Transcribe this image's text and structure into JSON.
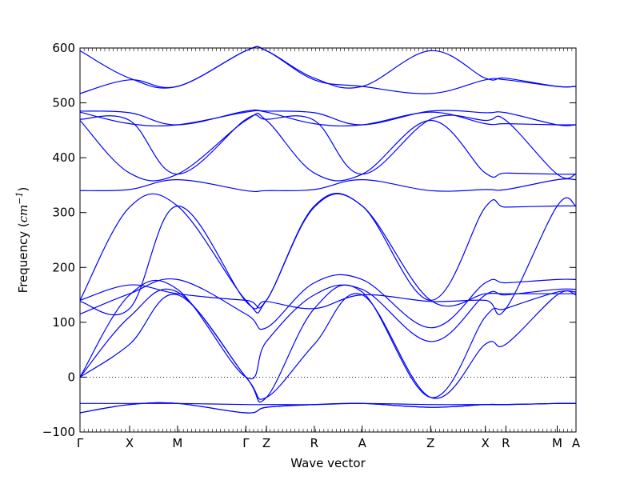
{
  "chart_data": {
    "type": "line",
    "xlabel": "Wave vector",
    "ylabel": {
      "prefix": "Frequency (",
      "unit": "cm",
      "exp": "−1",
      "suffix": ")"
    },
    "ylim": [
      -100,
      600
    ],
    "yticks": [
      -100,
      0,
      100,
      200,
      300,
      400,
      500,
      600
    ],
    "ytick_labels": [
      "−100",
      "0",
      "100",
      "200",
      "300",
      "400",
      "500",
      "600"
    ],
    "xlim": [
      0,
      2.9
    ],
    "kpoints": [
      {
        "label": "Γ",
        "x": 0.0
      },
      {
        "label": "X",
        "x": 0.29
      },
      {
        "label": "M",
        "x": 0.57
      },
      {
        "label": "Γ",
        "x": 0.97
      },
      {
        "label": "Z",
        "x": 1.09
      },
      {
        "label": "R",
        "x": 1.37
      },
      {
        "label": "A",
        "x": 1.65
      },
      {
        "label": "Z",
        "x": 2.05
      },
      {
        "label": "X",
        "x": 2.37
      },
      {
        "label": "R",
        "x": 2.49
      },
      {
        "label": "M",
        "x": 2.79
      },
      {
        "label": "A",
        "x": 2.9
      }
    ],
    "zero_line": {
      "y": 0,
      "style": "dotted"
    },
    "line_color": "#0000ff",
    "series": [
      {
        "x": [
          0,
          0.29,
          0.57,
          0.97,
          1.09,
          1.37,
          1.65,
          2.05,
          2.37,
          2.49,
          2.79,
          2.9
        ],
        "values": [
          -65,
          -50,
          -48,
          -65,
          -55,
          -50,
          -48,
          -55,
          -50,
          -50,
          -48,
          -48
        ]
      },
      {
        "x": [
          0,
          0.29,
          0.57,
          0.97,
          1.09,
          1.37,
          1.65,
          2.05,
          2.37,
          2.49,
          2.79,
          2.9
        ],
        "values": [
          -65,
          -50,
          -48,
          -65,
          -55,
          -50,
          -48,
          -55,
          -50,
          -50,
          -48,
          -48
        ]
      },
      {
        "x": [
          0,
          0.29,
          0.57,
          0.97,
          1.09,
          1.37,
          1.65,
          2.05,
          2.37,
          2.49,
          2.79,
          2.9
        ],
        "values": [
          -48,
          -48,
          -48,
          -50,
          -50,
          -50,
          -48,
          -50,
          -50,
          -50,
          -48,
          -48
        ]
      },
      {
        "x": [
          0,
          0.29,
          0.57,
          0.97,
          1.09,
          1.37,
          1.65,
          2.05,
          2.37,
          2.49,
          2.79,
          2.9
        ],
        "values": [
          0,
          60,
          150,
          0,
          -37,
          60,
          150,
          -37,
          60,
          60,
          150,
          150
        ]
      },
      {
        "x": [
          0,
          0.29,
          0.57,
          0.97,
          1.09,
          1.37,
          1.65,
          2.05,
          2.37,
          2.49,
          2.79,
          2.9
        ],
        "values": [
          0,
          110,
          155,
          0,
          -37,
          125,
          155,
          -37,
          110,
          125,
          155,
          155
        ]
      },
      {
        "x": [
          0,
          0.29,
          0.57,
          0.97,
          1.09,
          1.37,
          1.65,
          2.05,
          2.37,
          2.49,
          2.79,
          2.9
        ],
        "values": [
          0,
          150,
          160,
          0,
          65,
          150,
          160,
          65,
          150,
          150,
          160,
          160
        ]
      },
      {
        "x": [
          0,
          0.29,
          0.57,
          0.97,
          1.09,
          1.37,
          1.65,
          2.05,
          2.37,
          2.49,
          2.79,
          2.9
        ],
        "values": [
          115,
          152,
          178,
          115,
          90,
          172,
          178,
          90,
          172,
          172,
          178,
          178
        ]
      },
      {
        "x": [
          0,
          0.29,
          0.57,
          0.97,
          1.09,
          1.37,
          1.65,
          2.05,
          2.37,
          2.49,
          2.79,
          2.9
        ],
        "values": [
          138,
          125,
          312,
          138,
          138,
          125,
          150,
          138,
          140,
          125,
          312,
          312
        ]
      },
      {
        "x": [
          0,
          0.29,
          0.57,
          0.97,
          1.09,
          1.37,
          1.65,
          2.05,
          2.37,
          2.49,
          2.79,
          2.9
        ],
        "values": [
          140,
          168,
          152,
          140,
          140,
          310,
          312,
          140,
          152,
          152,
          152,
          152
        ]
      },
      {
        "x": [
          0,
          0.29,
          0.57,
          0.97,
          1.09,
          1.37,
          1.65,
          2.05,
          2.37,
          2.49,
          2.79,
          2.9
        ],
        "values": [
          140,
          310,
          312,
          140,
          140,
          312,
          312,
          140,
          310,
          310,
          312,
          312
        ]
      },
      {
        "x": [
          0,
          0.29,
          0.57,
          0.97,
          1.09,
          1.37,
          1.65,
          2.05,
          2.37,
          2.49,
          2.79,
          2.9
        ],
        "values": [
          340,
          342,
          360,
          340,
          340,
          342,
          360,
          340,
          342,
          342,
          360,
          360
        ]
      },
      {
        "x": [
          0,
          0.29,
          0.57,
          0.97,
          1.09,
          1.37,
          1.65,
          2.05,
          2.37,
          2.49,
          2.79,
          2.9
        ],
        "values": [
          468,
          372,
          370,
          468,
          468,
          372,
          370,
          468,
          372,
          372,
          370,
          370
        ]
      },
      {
        "x": [
          0,
          0.29,
          0.57,
          0.97,
          1.09,
          1.37,
          1.65,
          2.05,
          2.37,
          2.49,
          2.79,
          2.9
        ],
        "values": [
          470,
          468,
          370,
          470,
          470,
          468,
          370,
          470,
          468,
          468,
          370,
          370
        ]
      },
      {
        "x": [
          0,
          0.29,
          0.57,
          0.97,
          1.09,
          1.37,
          1.65,
          2.05,
          2.37,
          2.49,
          2.79,
          2.9
        ],
        "values": [
          483,
          462,
          460,
          483,
          483,
          462,
          460,
          483,
          462,
          462,
          460,
          460
        ]
      },
      {
        "x": [
          0,
          0.29,
          0.57,
          0.97,
          1.09,
          1.37,
          1.65,
          2.05,
          2.37,
          2.49,
          2.79,
          2.9
        ],
        "values": [
          485,
          482,
          460,
          485,
          485,
          482,
          460,
          485,
          482,
          482,
          460,
          460
        ]
      },
      {
        "x": [
          0,
          0.29,
          0.57,
          0.97,
          1.09,
          1.37,
          1.65,
          2.05,
          2.37,
          2.49,
          2.79,
          2.9
        ],
        "values": [
          517,
          542,
          530,
          595,
          595,
          545,
          530,
          595,
          545,
          545,
          530,
          530
        ]
      },
      {
        "x": [
          0,
          0.29,
          0.57,
          0.97,
          1.09,
          1.37,
          1.65,
          2.05,
          2.37,
          2.49,
          2.79,
          2.9
        ],
        "values": [
          595,
          545,
          530,
          595,
          595,
          542,
          530,
          517,
          542,
          542,
          530,
          530
        ]
      }
    ]
  }
}
